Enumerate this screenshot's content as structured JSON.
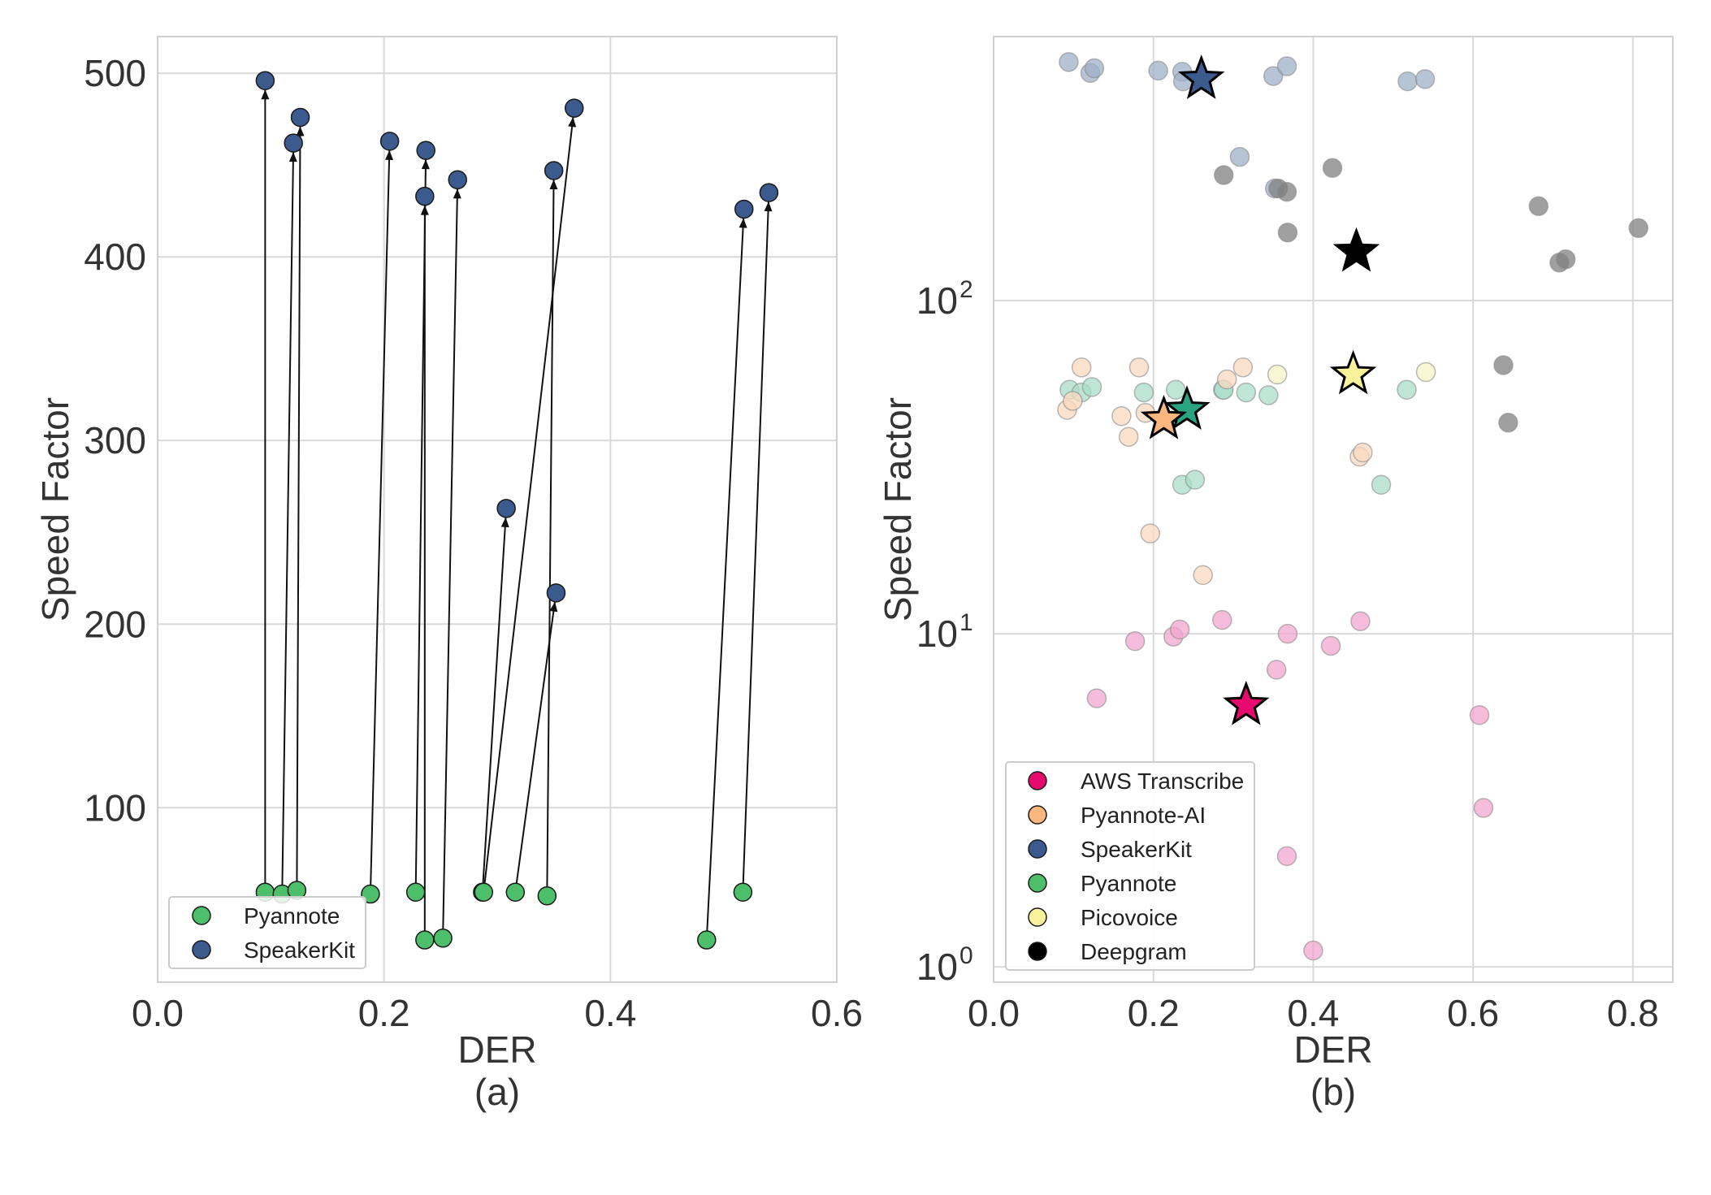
{
  "chart_data": [
    {
      "id": "a",
      "type": "scatter",
      "panel_label": "(a)",
      "xlabel": "DER",
      "ylabel": "Speed Factor",
      "xlim": [
        0.0,
        0.6
      ],
      "ylim": [
        5,
        520
      ],
      "xticks": [
        0.0,
        0.2,
        0.4,
        0.6
      ],
      "xtick_labels": [
        "0.0",
        "0.2",
        "0.4",
        "0.6"
      ],
      "yticks": [
        100,
        200,
        300,
        400,
        500
      ],
      "ytick_labels": [
        "100",
        "200",
        "300",
        "400",
        "500"
      ],
      "grid": true,
      "legend_position": "lower-left",
      "legend": [
        {
          "label": "Pyannote",
          "color": "#4dbf6a"
        },
        {
          "label": "SpeakerKit",
          "color": "#3b5b8f"
        }
      ],
      "pairs": [
        {
          "from": [
            0.095,
            54
          ],
          "to": [
            0.095,
            496
          ]
        },
        {
          "from": [
            0.11,
            53
          ],
          "to": [
            0.12,
            462
          ]
        },
        {
          "from": [
            0.123,
            55
          ],
          "to": [
            0.126,
            476
          ]
        },
        {
          "from": [
            0.188,
            53
          ],
          "to": [
            0.205,
            463
          ]
        },
        {
          "from": [
            0.228,
            54
          ],
          "to": [
            0.237,
            458
          ]
        },
        {
          "from": [
            0.236,
            28
          ],
          "to": [
            0.236,
            433
          ]
        },
        {
          "from": [
            0.252,
            29
          ],
          "to": [
            0.265,
            442
          ]
        },
        {
          "from": [
            0.287,
            54
          ],
          "to": [
            0.308,
            263
          ]
        },
        {
          "from": [
            0.288,
            54
          ],
          "to": [
            0.368,
            481
          ]
        },
        {
          "from": [
            0.316,
            54
          ],
          "to": [
            0.352,
            217
          ]
        },
        {
          "from": [
            0.344,
            52
          ],
          "to": [
            0.35,
            447
          ]
        },
        {
          "from": [
            0.485,
            28
          ],
          "to": [
            0.518,
            426
          ]
        },
        {
          "from": [
            0.517,
            54
          ],
          "to": [
            0.54,
            435
          ]
        }
      ]
    },
    {
      "id": "b",
      "type": "scatter",
      "panel_label": "(b)",
      "xlabel": "DER",
      "ylabel": "Speed Factor",
      "xscale": "linear",
      "yscale": "log",
      "xlim": [
        0.0,
        0.85
      ],
      "ylim": [
        0.9,
        620
      ],
      "xticks": [
        0.0,
        0.2,
        0.4,
        0.6,
        0.8
      ],
      "xtick_labels": [
        "0.0",
        "0.2",
        "0.4",
        "0.6",
        "0.8"
      ],
      "yticks": [
        1,
        10,
        100
      ],
      "ytick_base": "10",
      "ytick_exponents": [
        "0",
        "1",
        "2"
      ],
      "grid": true,
      "legend_position": "lower-left",
      "legend": [
        {
          "label": "AWS Transcribe",
          "color": "#e6096e"
        },
        {
          "label": "Pyannote-AI",
          "color": "#fbb77e"
        },
        {
          "label": "SpeakerKit",
          "color": "#3b5b8f"
        },
        {
          "label": "Pyannote",
          "color": "#4dbf6a"
        },
        {
          "label": "Picovoice",
          "color": "#f8f39a"
        },
        {
          "label": "Deepgram",
          "color": "#000000"
        }
      ],
      "series": [
        {
          "name": "SpeakerKit",
          "color": "#3b5b8f",
          "point_color": "#9fb0c8",
          "points": [
            [
              0.094,
              520
            ],
            [
              0.121,
              482
            ],
            [
              0.126,
              498
            ],
            [
              0.206,
              490
            ],
            [
              0.236,
              486
            ],
            [
              0.237,
              455
            ],
            [
              0.35,
              472
            ],
            [
              0.367,
              505
            ],
            [
              0.518,
              455
            ],
            [
              0.54,
              462
            ],
            [
              0.308,
              270
            ],
            [
              0.352,
              217
            ]
          ],
          "star": [
            0.26,
            462
          ]
        },
        {
          "name": "Deepgram",
          "color": "#000000",
          "point_color": "#808080",
          "points": [
            [
              0.288,
              238
            ],
            [
              0.356,
              217
            ],
            [
              0.367,
              212
            ],
            [
              0.424,
              250
            ],
            [
              0.368,
              160
            ],
            [
              0.682,
              192
            ],
            [
              0.807,
              165
            ],
            [
              0.708,
              130
            ],
            [
              0.716,
              133
            ],
            [
              0.638,
              64
            ],
            [
              0.644,
              43
            ]
          ],
          "star": [
            0.454,
            140
          ]
        },
        {
          "name": "Pyannote",
          "color": "#2aa383",
          "point_color": "#a9dcc9",
          "points": [
            [
              0.095,
              54
            ],
            [
              0.11,
              53
            ],
            [
              0.123,
              55
            ],
            [
              0.188,
              53
            ],
            [
              0.228,
              54
            ],
            [
              0.287,
              54
            ],
            [
              0.288,
              54
            ],
            [
              0.316,
              53
            ],
            [
              0.344,
              52
            ],
            [
              0.517,
              54
            ],
            [
              0.236,
              28
            ],
            [
              0.252,
              29
            ],
            [
              0.485,
              28
            ]
          ],
          "star": [
            0.242,
            47
          ]
        },
        {
          "name": "Pyannote-AI",
          "color": "#fbb77e",
          "point_color": "#fbd9bf",
          "points": [
            [
              0.092,
              47
            ],
            [
              0.099,
              50
            ],
            [
              0.11,
              63
            ],
            [
              0.16,
              45
            ],
            [
              0.169,
              39
            ],
            [
              0.182,
              63
            ],
            [
              0.19,
              46
            ],
            [
              0.196,
              20
            ],
            [
              0.262,
              15
            ],
            [
              0.292,
              58
            ],
            [
              0.312,
              63
            ],
            [
              0.458,
              34
            ],
            [
              0.462,
              35
            ]
          ],
          "star": [
            0.213,
            44
          ]
        },
        {
          "name": "Picovoice",
          "color": "#f8f39a",
          "point_color": "#f7f3c8",
          "points": [
            [
              0.355,
              60
            ],
            [
              0.541,
              61
            ]
          ],
          "star": [
            0.45,
            60
          ]
        },
        {
          "name": "AWS Transcribe",
          "color": "#e6096e",
          "point_color": "#f3a6cf",
          "points": [
            [
              0.129,
              6.4
            ],
            [
              0.177,
              9.5
            ],
            [
              0.225,
              9.8
            ],
            [
              0.233,
              10.3
            ],
            [
              0.286,
              11.0
            ],
            [
              0.354,
              7.8
            ],
            [
              0.368,
              10.0
            ],
            [
              0.422,
              9.2
            ],
            [
              0.459,
              10.9
            ],
            [
              0.608,
              5.7
            ],
            [
              0.613,
              3.0
            ],
            [
              0.367,
              2.15
            ],
            [
              0.4,
              1.12
            ]
          ],
          "star": [
            0.316,
            6.1
          ]
        }
      ]
    }
  ]
}
